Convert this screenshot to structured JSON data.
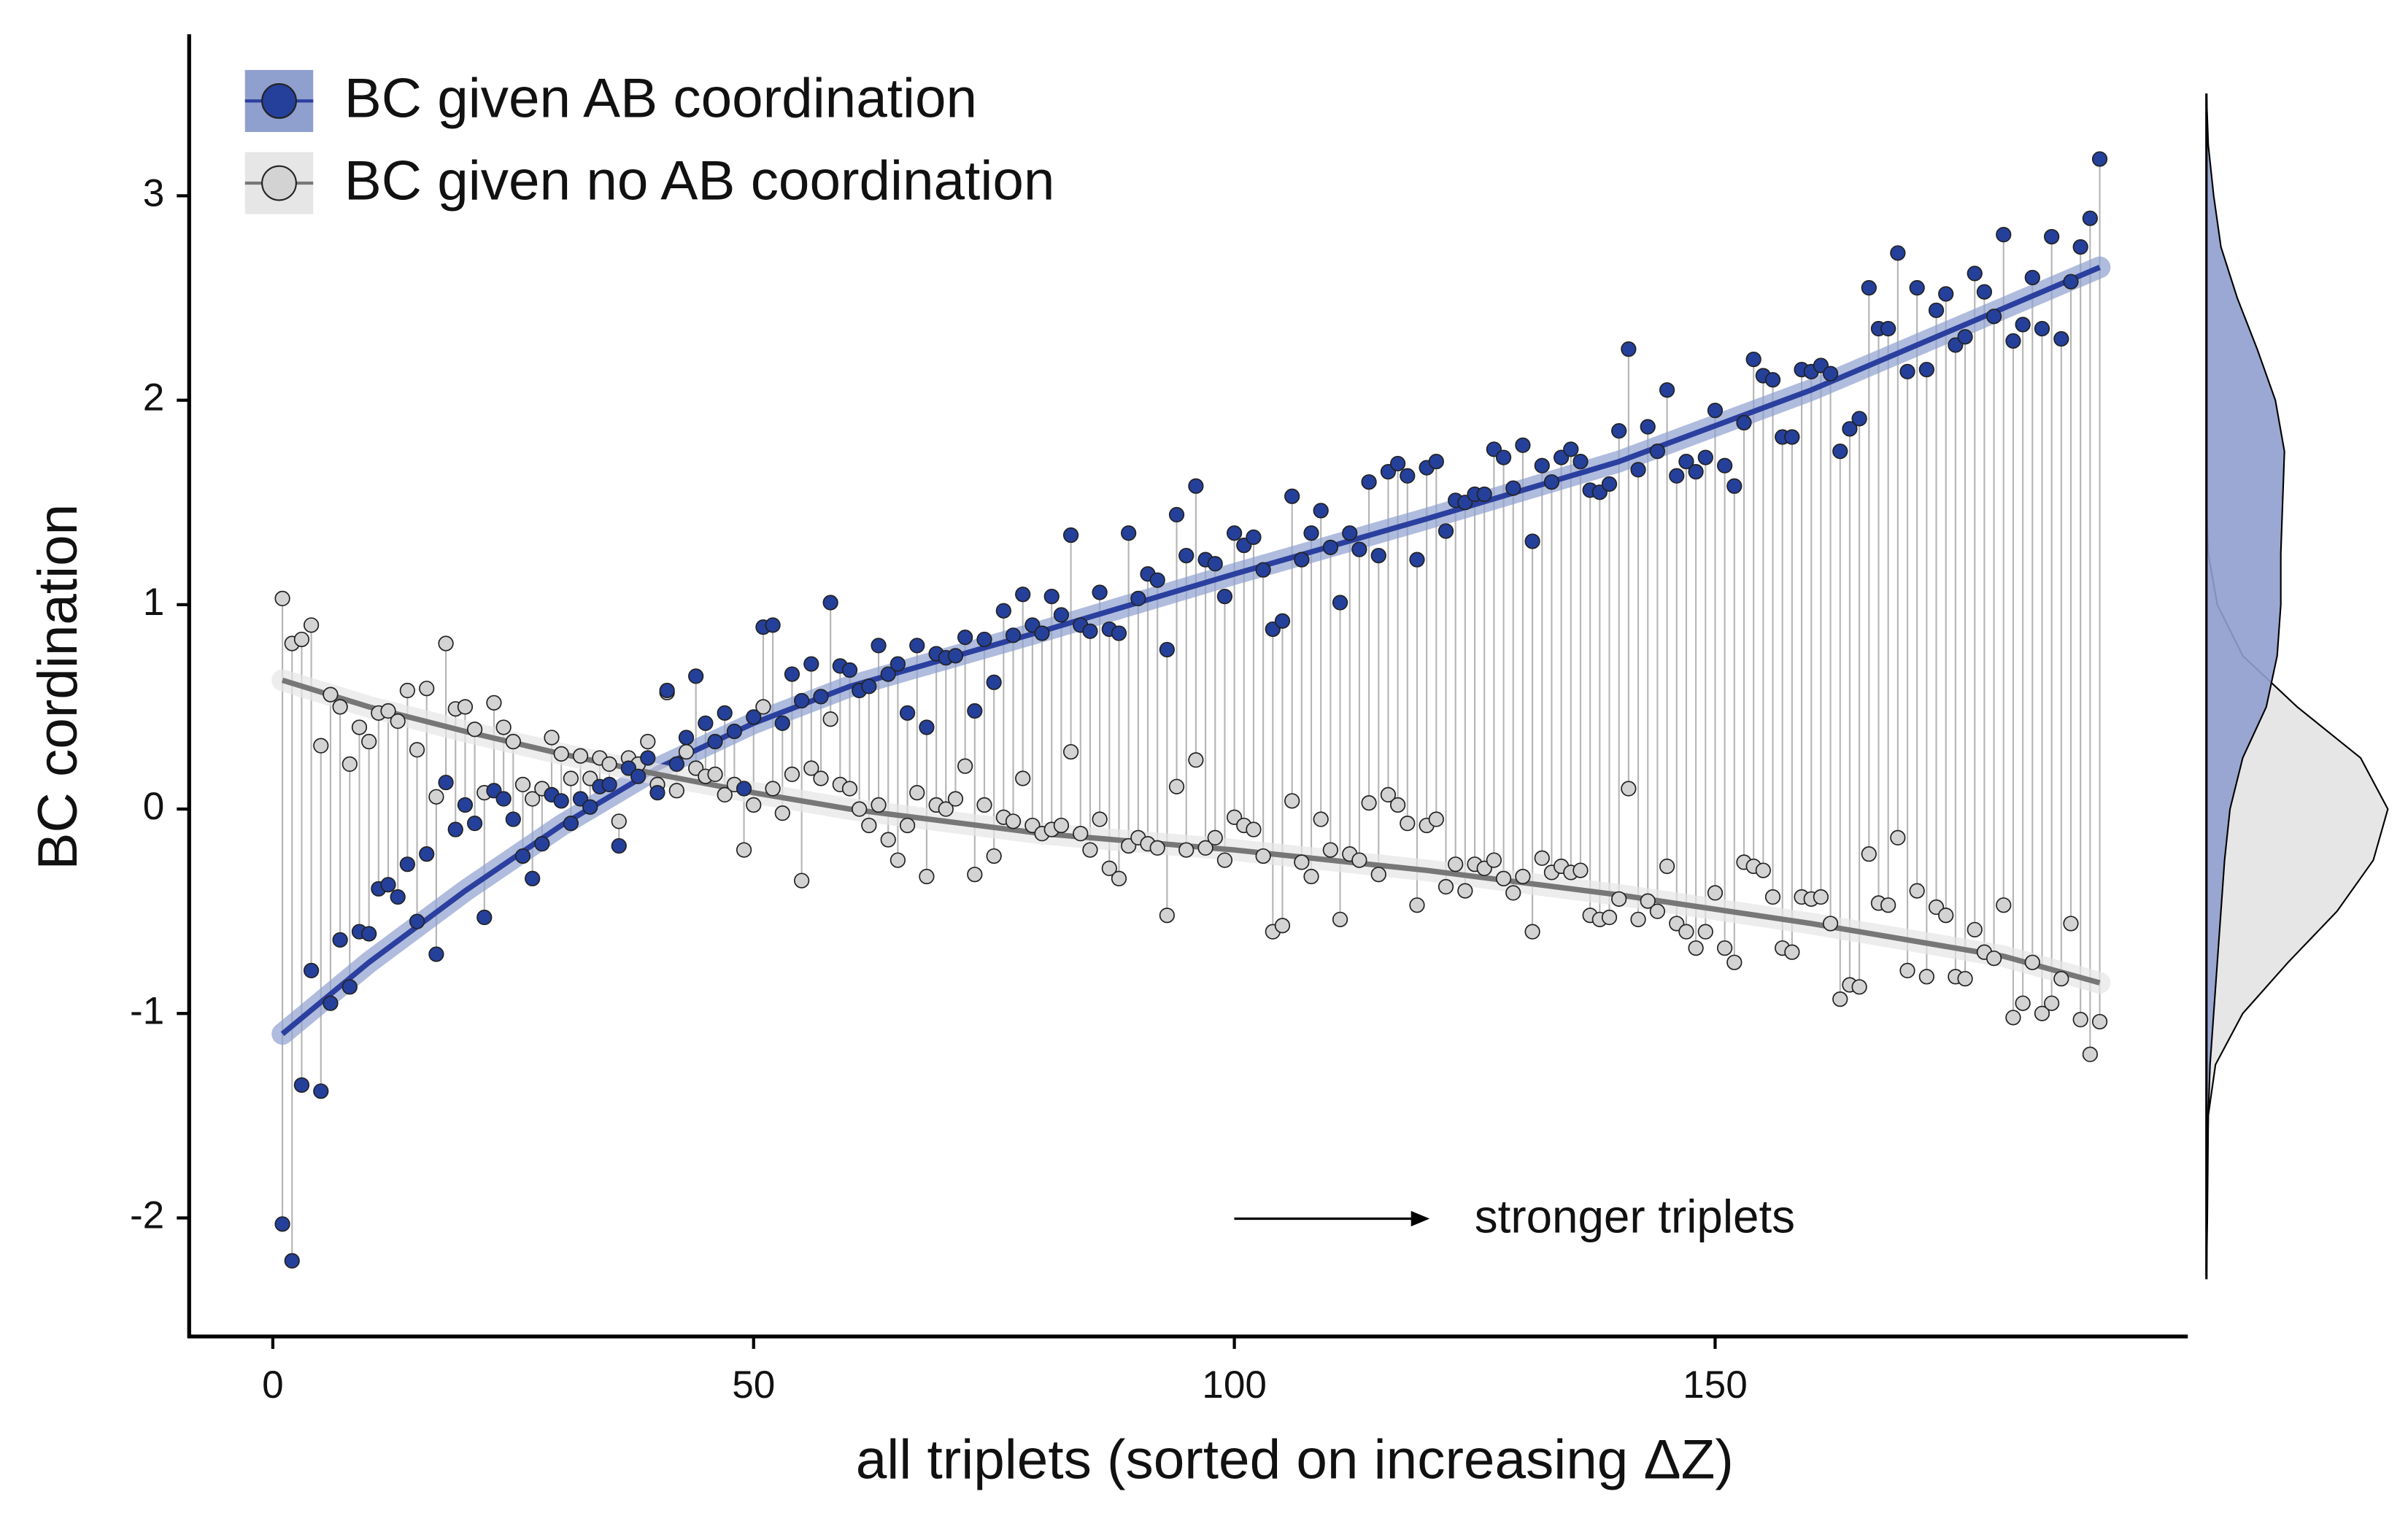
{
  "chart_data": {
    "type": "scatter",
    "x_label": "all triplets (sorted on increasing ΔZ)",
    "y_label": "BC cordination",
    "annotation": "stronger triplets",
    "legend": "top-left",
    "grid": false,
    "xlim": [
      -8.7,
      199
    ],
    "ylim": [
      -2.58,
      3.79
    ],
    "xticks": [
      0,
      50,
      100,
      150
    ],
    "yticks": [
      -2,
      -1,
      0,
      1,
      2,
      3
    ],
    "x": [
      1,
      2,
      3,
      4,
      5,
      6,
      7,
      8,
      9,
      10,
      11,
      12,
      13,
      14,
      15,
      16,
      17,
      18,
      19,
      20,
      21,
      22,
      23,
      24,
      25,
      26,
      27,
      28,
      29,
      30,
      31,
      32,
      33,
      34,
      35,
      36,
      37,
      38,
      39,
      40,
      41,
      42,
      43,
      44,
      45,
      46,
      47,
      48,
      49,
      50,
      51,
      52,
      53,
      54,
      55,
      56,
      57,
      58,
      59,
      60,
      61,
      62,
      63,
      64,
      65,
      66,
      67,
      68,
      69,
      70,
      71,
      72,
      73,
      74,
      75,
      76,
      77,
      78,
      79,
      80,
      81,
      82,
      83,
      84,
      85,
      86,
      87,
      88,
      89,
      90,
      91,
      92,
      93,
      94,
      95,
      96,
      97,
      98,
      99,
      100,
      101,
      102,
      103,
      104,
      105,
      106,
      107,
      108,
      109,
      110,
      111,
      112,
      113,
      114,
      115,
      116,
      117,
      118,
      119,
      120,
      121,
      122,
      123,
      124,
      125,
      126,
      127,
      128,
      129,
      130,
      131,
      132,
      133,
      134,
      135,
      136,
      137,
      138,
      139,
      140,
      141,
      142,
      143,
      144,
      145,
      146,
      147,
      148,
      149,
      150,
      151,
      152,
      153,
      154,
      155,
      156,
      157,
      158,
      159,
      160,
      161,
      162,
      163,
      164,
      165,
      166,
      167,
      168,
      169,
      170,
      171,
      172,
      173,
      174,
      175,
      176,
      177,
      178,
      179,
      180,
      181,
      182,
      183,
      184,
      185,
      186,
      187,
      188,
      189,
      190
    ],
    "density_y": [
      -2.3,
      -2,
      -1.5,
      -1.25,
      -1,
      -0.75,
      -0.5,
      -0.25,
      0,
      0.25,
      0.5,
      0.75,
      1,
      1.25,
      1.5,
      1.75,
      2,
      2.25,
      2.5,
      2.75,
      3,
      3.25,
      3.5
    ],
    "series": [
      {
        "name": "BC given AB coordination",
        "color": "#25409a",
        "band_color": "#8f9fce",
        "fit_color": "#2a3f9e",
        "values": [
          -2.03,
          -2.21,
          -1.35,
          -0.79,
          -1.38,
          -0.95,
          -0.64,
          -0.87,
          -0.6,
          -0.61,
          -0.39,
          -0.37,
          -0.43,
          -0.27,
          -0.55,
          -0.22,
          -0.71,
          0.13,
          -0.1,
          0.02,
          -0.07,
          -0.53,
          0.09,
          0.05,
          -0.05,
          -0.23,
          -0.34,
          -0.17,
          0.07,
          0.04,
          -0.07,
          0.05,
          0.01,
          0.11,
          0.12,
          -0.18,
          0.2,
          0.16,
          0.25,
          0.08,
          0.58,
          0.22,
          0.35,
          0.65,
          0.42,
          0.33,
          0.47,
          0.38,
          0.1,
          0.45,
          0.89,
          0.9,
          0.42,
          0.66,
          0.53,
          0.71,
          0.55,
          1.01,
          0.7,
          0.68,
          0.58,
          0.6,
          0.8,
          0.66,
          0.71,
          0.47,
          0.8,
          0.4,
          0.76,
          0.74,
          0.75,
          0.84,
          0.48,
          0.83,
          0.62,
          0.97,
          0.85,
          1.05,
          0.9,
          0.86,
          1.04,
          0.95,
          1.34,
          0.9,
          0.87,
          1.06,
          0.88,
          0.86,
          1.35,
          1.03,
          1.15,
          1.12,
          0.78,
          1.44,
          1.24,
          1.58,
          1.22,
          1.2,
          1.04,
          1.35,
          1.29,
          1.33,
          1.17,
          0.88,
          0.92,
          1.53,
          1.22,
          1.35,
          1.46,
          1.28,
          1.01,
          1.35,
          1.27,
          1.6,
          1.24,
          1.65,
          1.69,
          1.63,
          1.22,
          1.67,
          1.7,
          1.36,
          1.51,
          1.5,
          1.54,
          1.54,
          1.76,
          1.72,
          1.57,
          1.78,
          1.31,
          1.68,
          1.6,
          1.72,
          1.76,
          1.7,
          1.56,
          1.55,
          1.59,
          1.85,
          2.25,
          1.66,
          1.87,
          1.75,
          2.05,
          1.63,
          1.7,
          1.65,
          1.72,
          1.95,
          1.68,
          1.58,
          1.89,
          2.2,
          2.12,
          2.1,
          1.82,
          1.82,
          2.15,
          2.14,
          2.17,
          2.13,
          1.75,
          1.86,
          1.91,
          2.55,
          2.35,
          2.35,
          2.72,
          2.14,
          2.55,
          2.15,
          2.44,
          2.52,
          2.27,
          2.31,
          2.62,
          2.53,
          2.41,
          2.81,
          2.29,
          2.37,
          2.6,
          2.35,
          2.8,
          2.3,
          2.58,
          2.75,
          2.89,
          3.18
        ],
        "fit": {
          "x": [
            1,
            10,
            20,
            30,
            40,
            50,
            60,
            80,
            100,
            120,
            140,
            160,
            180,
            190
          ],
          "values": [
            -1.1,
            -0.75,
            -0.4,
            -0.08,
            0.2,
            0.42,
            0.6,
            0.87,
            1.15,
            1.42,
            1.7,
            2.05,
            2.45,
            2.65
          ]
        },
        "density": [
          0,
          0.005,
          0.01,
          0.02,
          0.04,
          0.06,
          0.08,
          0.1,
          0.13,
          0.2,
          0.33,
          0.39,
          0.41,
          0.41,
          0.42,
          0.43,
          0.38,
          0.28,
          0.17,
          0.08,
          0.04,
          0.01,
          0
        ]
      },
      {
        "name": "BC given no AB coordination",
        "color": "#d3d3d3",
        "band_color": "#e6e6e6",
        "fit_color": "#777777",
        "values": [
          1.03,
          0.81,
          0.83,
          0.9,
          0.31,
          0.56,
          0.5,
          0.22,
          0.4,
          0.33,
          0.47,
          0.48,
          0.43,
          0.58,
          0.29,
          0.59,
          0.06,
          0.81,
          0.49,
          0.5,
          0.39,
          0.08,
          0.52,
          0.4,
          0.33,
          0.12,
          0.05,
          0.1,
          0.35,
          0.27,
          0.15,
          0.26,
          0.15,
          0.25,
          0.22,
          -0.06,
          0.25,
          0.22,
          0.33,
          0.12,
          0.57,
          0.09,
          0.28,
          0.2,
          0.16,
          0.17,
          0.07,
          0.12,
          -0.2,
          0.02,
          0.5,
          0.1,
          -0.02,
          0.17,
          -0.35,
          0.2,
          0.15,
          0.44,
          0.12,
          0.1,
          0,
          -0.08,
          0.02,
          -0.15,
          -0.25,
          -0.08,
          0.08,
          -0.33,
          0.02,
          0,
          0.05,
          0.21,
          -0.32,
          0.02,
          -0.23,
          -0.04,
          -0.06,
          0.15,
          -0.08,
          -0.12,
          -0.1,
          -0.08,
          0.28,
          -0.12,
          -0.2,
          -0.05,
          -0.29,
          -0.34,
          -0.18,
          -0.14,
          -0.17,
          -0.19,
          -0.52,
          0.11,
          -0.2,
          0.24,
          -0.19,
          -0.14,
          -0.25,
          -0.04,
          -0.08,
          -0.1,
          -0.23,
          -0.6,
          -0.57,
          0.04,
          -0.26,
          -0.33,
          -0.05,
          -0.2,
          -0.54,
          -0.22,
          -0.25,
          0.03,
          -0.32,
          0.07,
          0.02,
          -0.07,
          -0.47,
          -0.08,
          -0.05,
          -0.38,
          -0.27,
          -0.4,
          -0.27,
          -0.29,
          -0.25,
          -0.34,
          -0.41,
          -0.33,
          -0.6,
          -0.24,
          -0.31,
          -0.28,
          -0.31,
          -0.3,
          -0.52,
          -0.54,
          -0.53,
          -0.44,
          0.1,
          -0.54,
          -0.45,
          -0.5,
          -0.28,
          -0.56,
          -0.6,
          -0.68,
          -0.6,
          -0.41,
          -0.68,
          -0.75,
          -0.26,
          -0.28,
          -0.3,
          -0.43,
          -0.68,
          -0.7,
          -0.43,
          -0.44,
          -0.43,
          -0.56,
          -0.93,
          -0.86,
          -0.87,
          -0.22,
          -0.46,
          -0.47,
          -0.14,
          -0.79,
          -0.4,
          -0.82,
          -0.48,
          -0.52,
          -0.82,
          -0.83,
          -0.59,
          -0.7,
          -0.73,
          -0.47,
          -1.02,
          -0.95,
          -0.75,
          -1,
          -0.95,
          -0.83,
          -0.56,
          -1.03,
          -1.2,
          -1.04
        ],
        "fit": {
          "x": [
            1,
            10,
            20,
            30,
            40,
            50,
            60,
            80,
            100,
            120,
            140,
            160,
            180,
            190
          ],
          "values": [
            0.63,
            0.5,
            0.38,
            0.27,
            0.17,
            0.08,
            0,
            -0.12,
            -0.2,
            -0.3,
            -0.42,
            -0.56,
            -0.72,
            -0.85
          ]
        },
        "density": [
          0,
          0,
          0.01,
          0.05,
          0.2,
          0.45,
          0.72,
          0.92,
          1,
          0.85,
          0.5,
          0.2,
          0.06,
          0.01,
          0,
          0,
          0,
          0,
          0,
          0,
          0,
          0,
          0
        ]
      }
    ]
  }
}
